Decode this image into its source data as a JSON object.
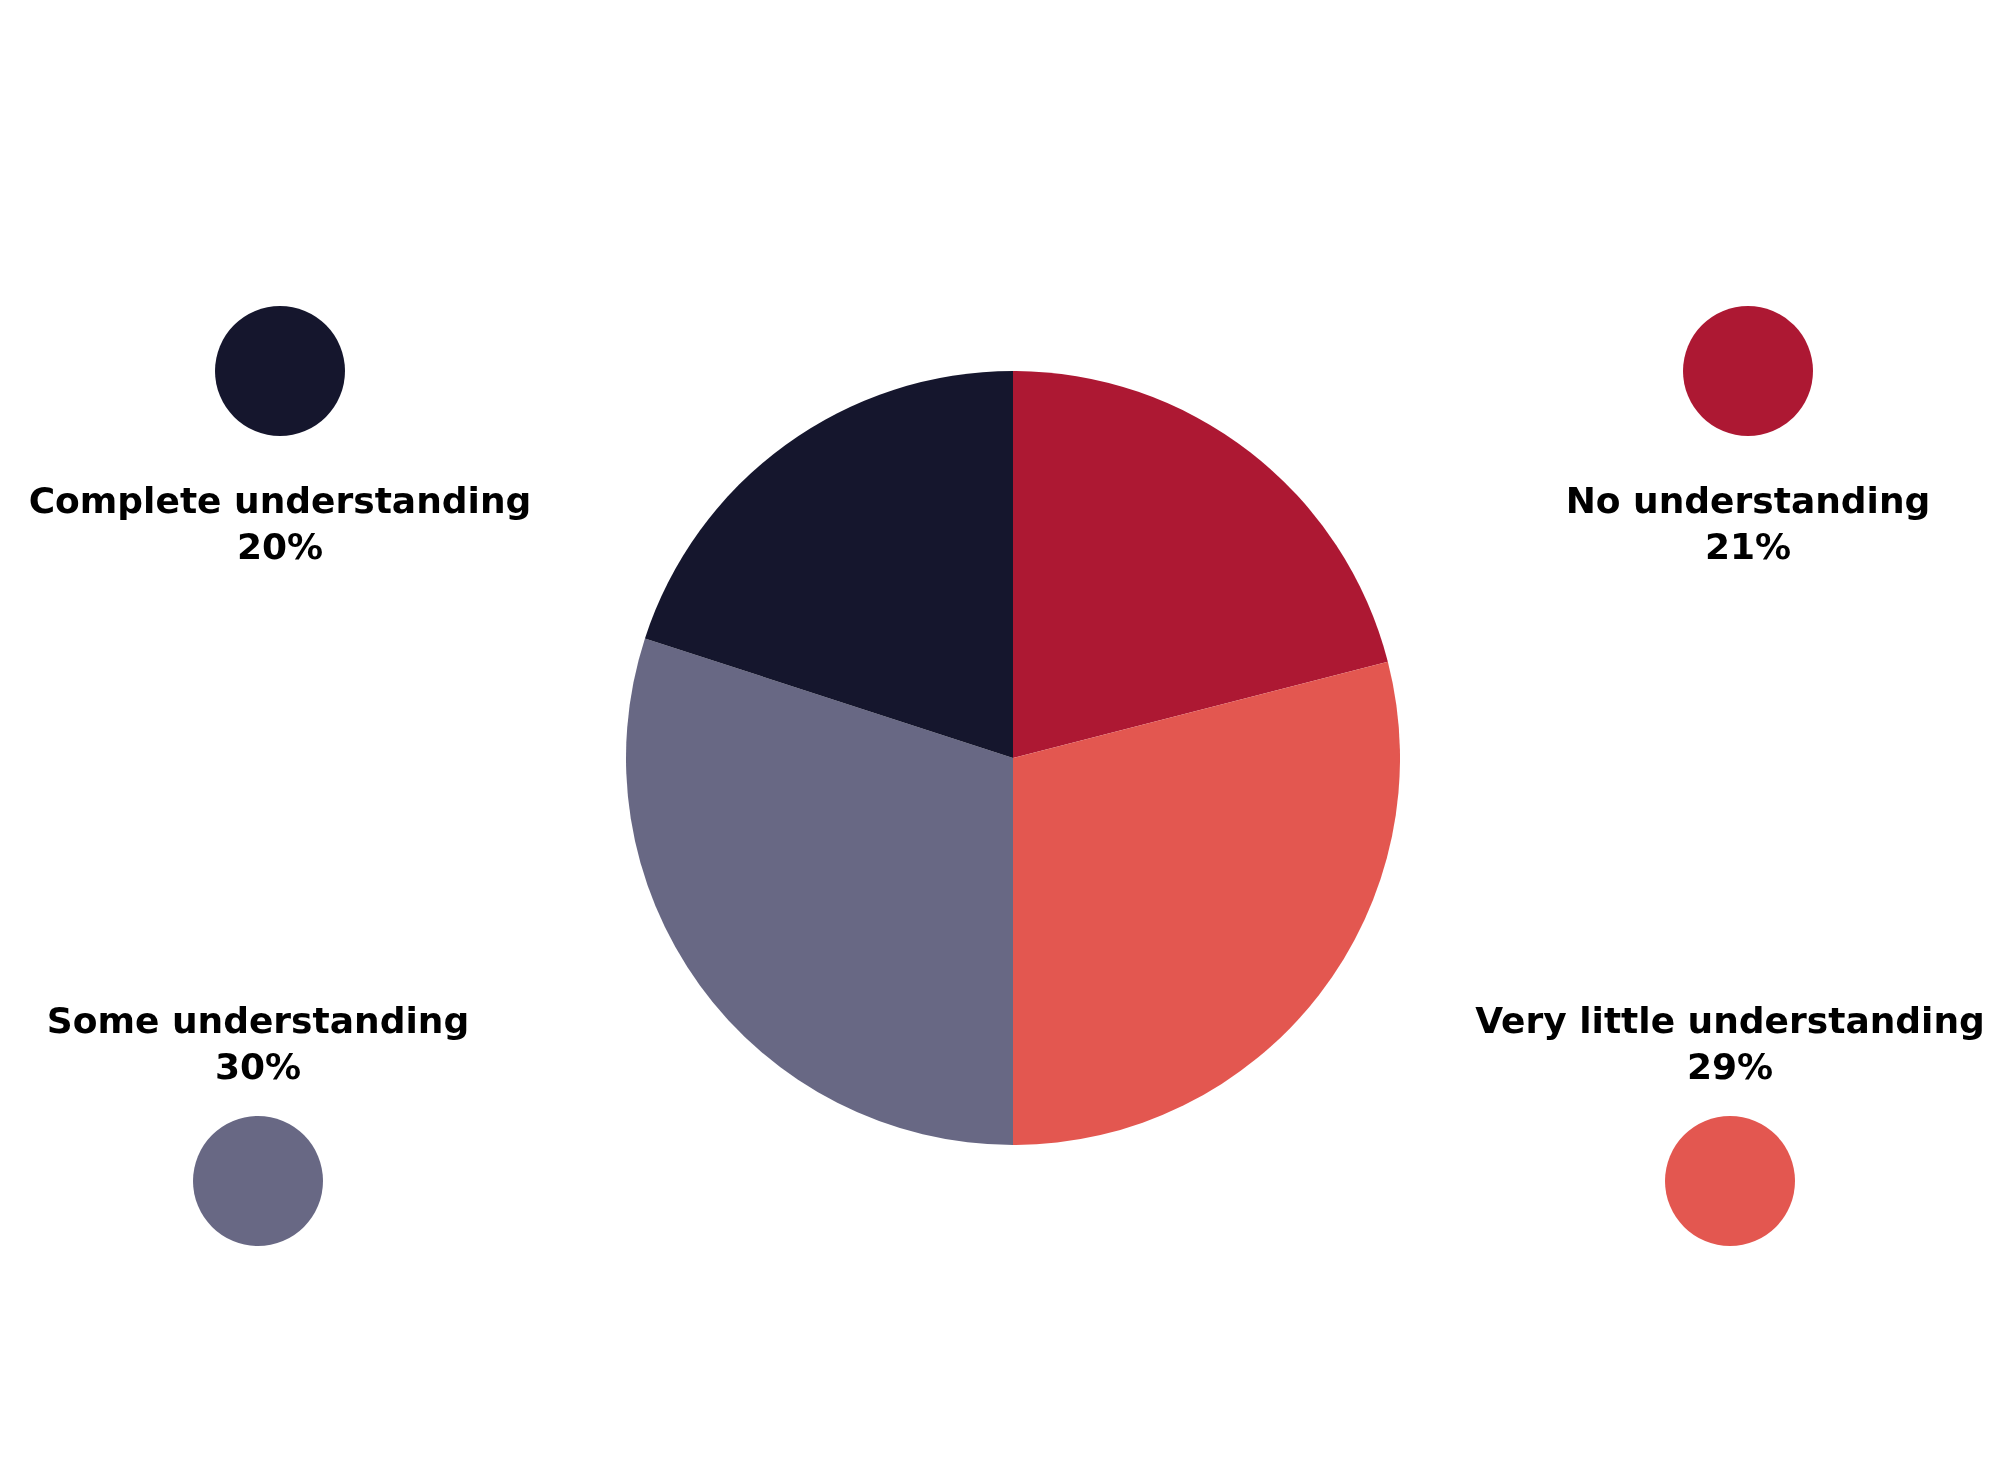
{
  "chart_data": {
    "type": "pie",
    "categories": [
      "No understanding",
      "Very little understanding",
      "Some understanding",
      "Complete understanding"
    ],
    "values": [
      21,
      29,
      30,
      20
    ],
    "colors": [
      "#ad1833",
      "#e35750",
      "#686884",
      "#15162d"
    ],
    "value_labels": [
      "21%",
      "29%",
      "30%",
      "20%"
    ]
  }
}
